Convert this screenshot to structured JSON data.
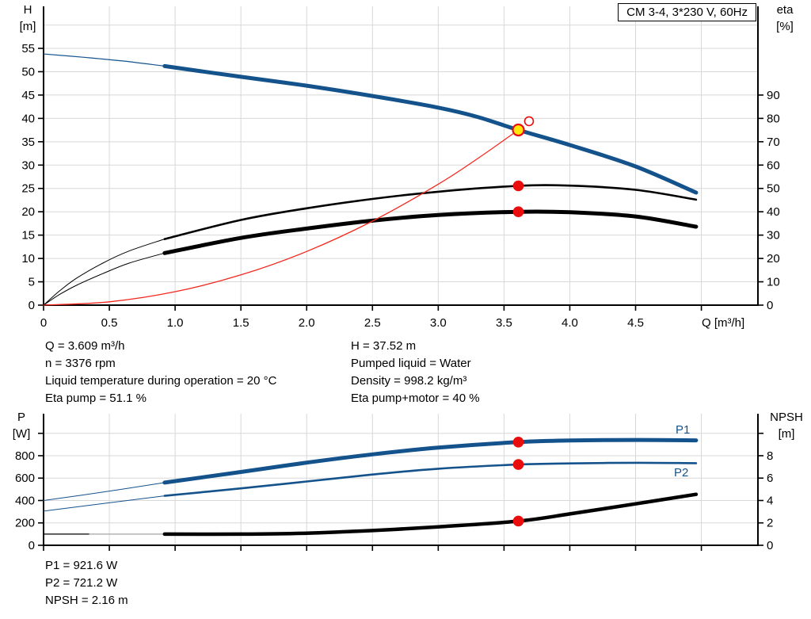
{
  "colors": {
    "curve_blue": "#14528c",
    "curve_black": "#000000",
    "curve_red": "#f5281e",
    "curve_gray": "#b3b3b3",
    "grid": "#d8d8d8",
    "axis": "#000000",
    "dot_red": "#ea0d0d",
    "dot_yellow": "#ffe60a"
  },
  "top_info": {
    "left": [
      "Q = 3.609 m³/h",
      "n = 3376 rpm",
      "Liquid temperature during operation = 20 °C",
      "Eta pump = 51.1 %"
    ],
    "right": [
      "H = 37.52 m",
      "Pumped liquid = Water",
      "Density = 998.2 kg/m³",
      "Eta pump+motor = 40 %"
    ]
  },
  "bottom_info": [
    "P1 = 921.6 W",
    "P2 = 721.2 W",
    "NPSH = 2.16 m"
  ],
  "chart_data": [
    {
      "type": "line",
      "title": "CM 3-4, 3*230 V, 60Hz",
      "x_axis": {
        "label": "Q [m³/h]",
        "min": 0,
        "max": 5.43,
        "ticks": [
          0,
          0.5,
          1.0,
          1.5,
          2.0,
          2.5,
          3.0,
          3.5,
          4.0,
          4.5,
          5.0
        ],
        "tick_labels": [
          "0",
          "0.5",
          "1.0",
          "1.5",
          "2.0",
          "2.5",
          "3.0",
          "3.5",
          "4.0",
          "4.5",
          ""
        ]
      },
      "y_left": {
        "label": "H",
        "unit": "[m]",
        "min": 0,
        "max": 64,
        "ticks": [
          0,
          5,
          10,
          15,
          20,
          25,
          30,
          35,
          40,
          45,
          50,
          55
        ],
        "tick_labels": [
          "0",
          "5",
          "10",
          "15",
          "20",
          "25",
          "30",
          "35",
          "40",
          "45",
          "50",
          "55"
        ]
      },
      "y_right": {
        "label": "eta",
        "unit": "[%]",
        "min": 0,
        "max": 128,
        "ticks": [
          0,
          10,
          20,
          30,
          40,
          50,
          60,
          70,
          80,
          90
        ],
        "tick_labels": [
          "0",
          "10",
          "20",
          "30",
          "40",
          "50",
          "60",
          "70",
          "80",
          "90"
        ]
      },
      "gridlines": {
        "horizontal": [
          5,
          10,
          15,
          20,
          25,
          30,
          35,
          40,
          45,
          50,
          55,
          60
        ],
        "vertical": [
          0.5,
          1.0,
          1.5,
          2.0,
          2.5,
          3.0,
          3.5,
          4.0,
          4.5,
          5.0
        ]
      },
      "series": [
        {
          "name": "pump-curve-out-of-range",
          "label": "",
          "axis": "left",
          "color_key": "curve_blue",
          "width": 1.2,
          "points": [
            [
              0,
              53.8
            ],
            [
              0.3,
              53.1
            ],
            [
              0.6,
              52.3
            ],
            [
              0.92,
              51.2
            ]
          ]
        },
        {
          "name": "pump-curve",
          "label": "",
          "axis": "left",
          "color_key": "curve_blue",
          "width": 5,
          "points": [
            [
              0.92,
              51.2
            ],
            [
              1.5,
              48.9
            ],
            [
              2.0,
              47.0
            ],
            [
              2.5,
              44.8
            ],
            [
              3.0,
              42.3
            ],
            [
              3.3,
              40.3
            ],
            [
              3.609,
              37.52
            ],
            [
              4.0,
              34.3
            ],
            [
              4.5,
              29.7
            ],
            [
              4.96,
              24.1
            ]
          ]
        },
        {
          "name": "eta-pump-out-of-range",
          "label": "",
          "axis": "right",
          "color_key": "curve_black",
          "width": 1,
          "points": [
            [
              0,
              0
            ],
            [
              0.12,
              6
            ],
            [
              0.25,
              11.5
            ],
            [
              0.45,
              18
            ],
            [
              0.65,
              23.2
            ],
            [
              0.92,
              28.3
            ]
          ]
        },
        {
          "name": "eta-pump",
          "label": "",
          "axis": "right",
          "color_key": "curve_black",
          "width": 2.6,
          "points": [
            [
              0.92,
              28.3
            ],
            [
              1.5,
              36.5
            ],
            [
              2.0,
              41.5
            ],
            [
              2.5,
              45.5
            ],
            [
              3.0,
              48.6
            ],
            [
              3.609,
              51.1
            ],
            [
              4.0,
              51.2
            ],
            [
              4.5,
              49.4
            ],
            [
              4.96,
              45.2
            ]
          ]
        },
        {
          "name": "eta-pump-motor-out-of-range",
          "label": "",
          "axis": "right",
          "color_key": "curve_black",
          "width": 1,
          "points": [
            [
              0,
              0
            ],
            [
              0.12,
              4.5
            ],
            [
              0.25,
              8.5
            ],
            [
              0.45,
              13.5
            ],
            [
              0.65,
              18
            ],
            [
              0.92,
              22.3
            ]
          ]
        },
        {
          "name": "eta-pump-motor",
          "label": "",
          "axis": "right",
          "color_key": "curve_black",
          "width": 5,
          "points": [
            [
              0.92,
              22.3
            ],
            [
              1.5,
              28.8
            ],
            [
              2.0,
              32.8
            ],
            [
              2.5,
              36.2
            ],
            [
              3.0,
              38.6
            ],
            [
              3.609,
              40
            ],
            [
              4.0,
              39.8
            ],
            [
              4.5,
              38
            ],
            [
              4.96,
              33.6
            ]
          ]
        },
        {
          "name": "system-curve",
          "label": "",
          "axis": "left",
          "color_key": "curve_red",
          "width": 1.3,
          "points": [
            [
              0,
              0
            ],
            [
              0.5,
              0.72
            ],
            [
              1.0,
              2.88
            ],
            [
              1.5,
              6.48
            ],
            [
              2.0,
              11.5
            ],
            [
              2.5,
              18.0
            ],
            [
              3.0,
              25.9
            ],
            [
              3.3,
              31.4
            ],
            [
              3.609,
              37.52
            ]
          ]
        }
      ],
      "markers": [
        {
          "name": "eta-pump-point",
          "style": "dot",
          "axis": "right",
          "q": 3.609,
          "v": 51.1
        },
        {
          "name": "eta-pump-motor-point",
          "style": "dot",
          "axis": "right",
          "q": 3.609,
          "v": 40
        },
        {
          "name": "requested-duty-point",
          "style": "open",
          "axis": "left",
          "q": 3.69,
          "v": 39.4
        },
        {
          "name": "operating-point",
          "style": "duty",
          "axis": "left",
          "q": 3.609,
          "v": 37.52
        }
      ]
    },
    {
      "type": "line",
      "title": "",
      "x_axis": {
        "label": "",
        "min": 0,
        "max": 5.43,
        "ticks": [
          0,
          0.5,
          1.0,
          1.5,
          2.0,
          2.5,
          3.0,
          3.5,
          4.0,
          4.5,
          5.0
        ],
        "tick_labels": [
          "",
          "",
          "",
          "",
          "",
          "",
          "",
          "",
          "",
          "",
          ""
        ]
      },
      "y_left": {
        "label": "P",
        "unit": "[W]",
        "min": 0,
        "max": 1175,
        "ticks": [
          0,
          200,
          400,
          600,
          800,
          1000
        ],
        "tick_labels": [
          "0",
          "200",
          "400",
          "600",
          "800",
          ""
        ]
      },
      "y_right": {
        "label": "NPSH",
        "unit": "[m]",
        "min": 0,
        "max": 11.75,
        "ticks": [
          0,
          2,
          4,
          6,
          8,
          10
        ],
        "tick_labels": [
          "0",
          "2",
          "4",
          "6",
          "8",
          ""
        ]
      },
      "gridlines": {
        "horizontal": [
          200,
          400,
          600,
          800,
          1000
        ],
        "vertical": [
          0.5,
          1.0,
          1.5,
          2.0,
          2.5,
          3.0,
          3.5,
          4.0,
          4.5,
          5.0
        ]
      },
      "series": [
        {
          "name": "p1-out-of-range",
          "label": "",
          "axis": "left",
          "color_key": "curve_blue",
          "width": 1,
          "points": [
            [
              0,
              400
            ],
            [
              0.45,
              475
            ],
            [
              0.92,
              560
            ]
          ]
        },
        {
          "name": "p1",
          "label": "P1",
          "axis": "left",
          "color_key": "curve_blue",
          "width": 5,
          "points": [
            [
              0.92,
              560
            ],
            [
              1.5,
              655
            ],
            [
              2.0,
              738
            ],
            [
              2.5,
              812
            ],
            [
              3.0,
              872
            ],
            [
              3.609,
              921.6
            ],
            [
              4.0,
              936
            ],
            [
              4.5,
              941
            ],
            [
              4.96,
              937
            ]
          ]
        },
        {
          "name": "p2-out-of-range",
          "label": "",
          "axis": "left",
          "color_key": "curve_blue",
          "width": 1,
          "points": [
            [
              0,
              305
            ],
            [
              0.45,
              372
            ],
            [
              0.92,
              442
            ]
          ]
        },
        {
          "name": "p2",
          "label": "P2",
          "axis": "left",
          "color_key": "curve_blue",
          "width": 2.6,
          "points": [
            [
              0.92,
              442
            ],
            [
              1.5,
              508
            ],
            [
              2.0,
              570
            ],
            [
              2.5,
              632
            ],
            [
              3.0,
              684
            ],
            [
              3.609,
              721.2
            ],
            [
              4.0,
              731
            ],
            [
              4.5,
              737
            ],
            [
              4.96,
              733
            ]
          ]
        },
        {
          "name": "npsh-out-of-range",
          "label": "",
          "axis": "right",
          "color_key": "curve_black",
          "width": 1.2,
          "points": [
            [
              0,
              1.0
            ],
            [
              0.35,
              1.0
            ]
          ]
        },
        {
          "name": "npsh-out-of-range-gray",
          "label": "",
          "axis": "right",
          "color_key": "curve_gray",
          "width": 1.5,
          "points": [
            [
              0.35,
              1.0
            ],
            [
              0.92,
              1.0
            ]
          ]
        },
        {
          "name": "npsh",
          "label": "",
          "axis": "right",
          "color_key": "curve_black",
          "width": 4.5,
          "points": [
            [
              0.92,
              1.0
            ],
            [
              1.5,
              1.0
            ],
            [
              2.0,
              1.08
            ],
            [
              2.5,
              1.32
            ],
            [
              3.0,
              1.65
            ],
            [
              3.609,
              2.16
            ],
            [
              4.0,
              2.8
            ],
            [
              4.5,
              3.7
            ],
            [
              4.96,
              4.55
            ]
          ]
        }
      ],
      "markers": [
        {
          "name": "p1-point",
          "style": "dot",
          "axis": "left",
          "q": 3.609,
          "v": 921.6
        },
        {
          "name": "p2-point",
          "style": "dot",
          "axis": "left",
          "q": 3.609,
          "v": 721.2
        },
        {
          "name": "npsh-point",
          "style": "dot",
          "axis": "right",
          "q": 3.609,
          "v": 2.16
        }
      ]
    }
  ]
}
